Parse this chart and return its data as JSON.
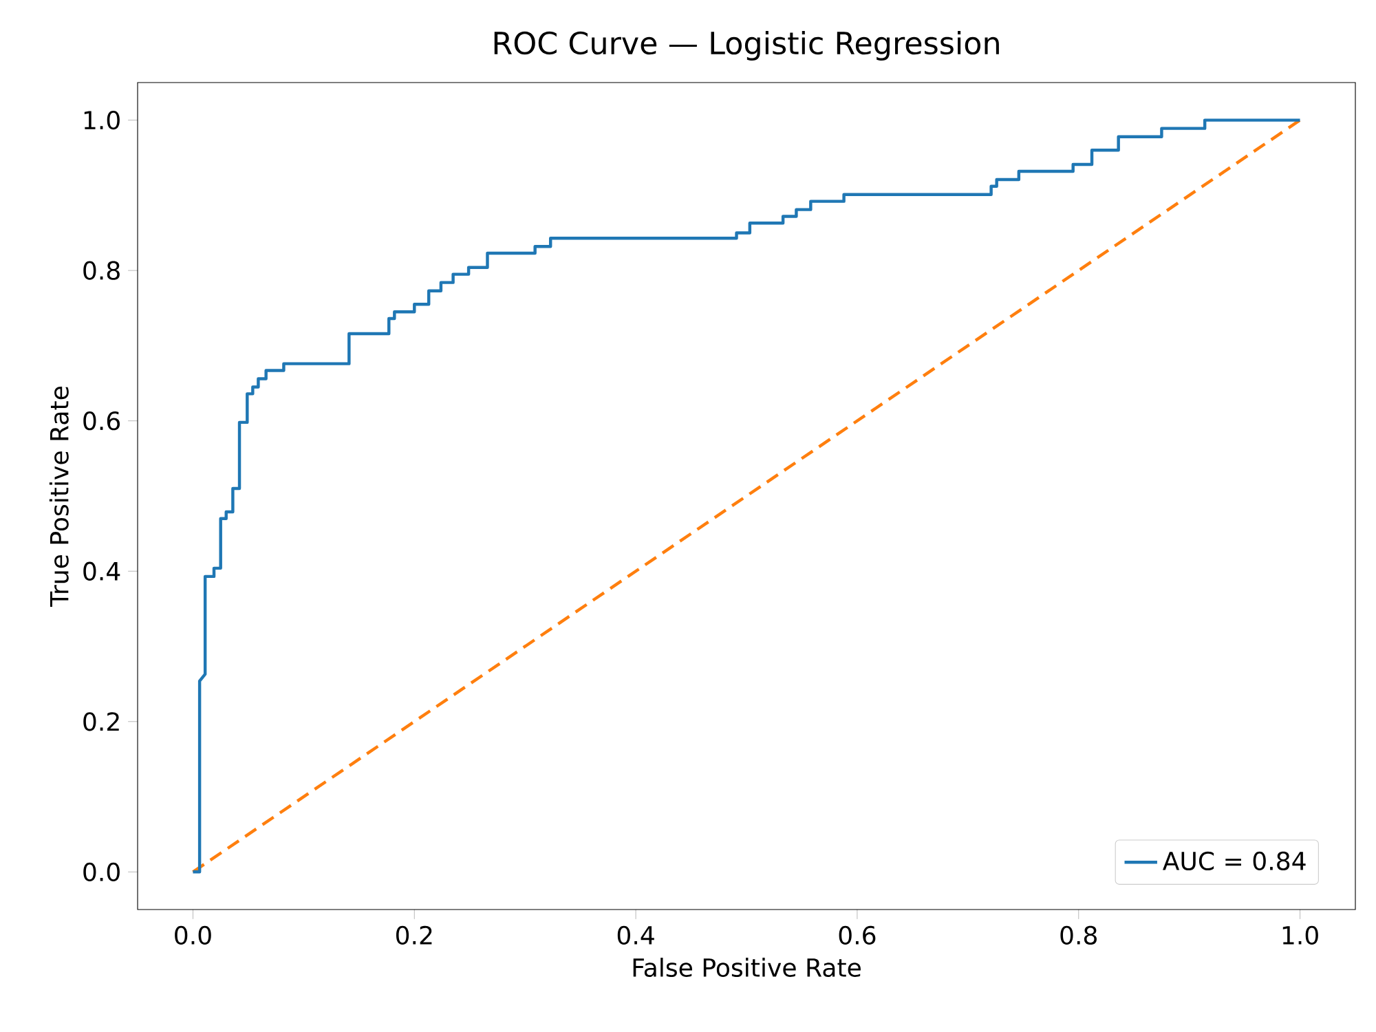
{
  "chart_data": {
    "type": "line",
    "title": "ROC Curve — Logistic Regression",
    "xlabel": "False Positive Rate",
    "ylabel": "True Positive Rate",
    "xlim": [
      -0.05,
      1.05
    ],
    "ylim": [
      -0.05,
      1.05
    ],
    "xticks": [
      {
        "value": 0,
        "label": "0.0"
      },
      {
        "value": 0.2,
        "label": "0.2"
      },
      {
        "value": 0.4,
        "label": "0.4"
      },
      {
        "value": 0.6,
        "label": "0.6"
      },
      {
        "value": 0.8,
        "label": "0.8"
      },
      {
        "value": 1,
        "label": "1.0"
      }
    ],
    "yticks": [
      {
        "value": 0,
        "label": "0.0"
      },
      {
        "value": 0.2,
        "label": "0.2"
      },
      {
        "value": 0.4,
        "label": "0.4"
      },
      {
        "value": 0.6,
        "label": "0.6"
      },
      {
        "value": 0.8,
        "label": "0.8"
      },
      {
        "value": 1,
        "label": "1.0"
      }
    ],
    "grid": false,
    "legend": "bottom right",
    "series": [
      {
        "name": "AUC = 0.84",
        "color": "#1f77b4",
        "line_style": "solid",
        "x": [
          0,
          0.006,
          0.006,
          0.011,
          0.011,
          0.019,
          0.019,
          0.025,
          0.025,
          0.03,
          0.03,
          0.036,
          0.036,
          0.042,
          0.042,
          0.049,
          0.049,
          0.054,
          0.054,
          0.059,
          0.059,
          0.066,
          0.066,
          0.082,
          0.082,
          0.141,
          0.141,
          0.177,
          0.177,
          0.182,
          0.182,
          0.2,
          0.2,
          0.213,
          0.213,
          0.224,
          0.224,
          0.235,
          0.235,
          0.249,
          0.249,
          0.266,
          0.266,
          0.309,
          0.309,
          0.323,
          0.323,
          0.491,
          0.491,
          0.503,
          0.503,
          0.533,
          0.533,
          0.545,
          0.545,
          0.558,
          0.558,
          0.588,
          0.588,
          0.721,
          0.721,
          0.726,
          0.726,
          0.746,
          0.746,
          0.795,
          0.795,
          0.812,
          0.812,
          0.836,
          0.836,
          0.875,
          0.875,
          0.914,
          0.914,
          1.0
        ],
        "values": [
          0,
          0,
          0.254,
          0.263,
          0.393,
          0.393,
          0.404,
          0.404,
          0.47,
          0.47,
          0.479,
          0.479,
          0.51,
          0.51,
          0.598,
          0.598,
          0.636,
          0.636,
          0.645,
          0.645,
          0.656,
          0.656,
          0.667,
          0.667,
          0.676,
          0.676,
          0.716,
          0.716,
          0.736,
          0.736,
          0.745,
          0.745,
          0.755,
          0.755,
          0.773,
          0.773,
          0.784,
          0.784,
          0.795,
          0.795,
          0.804,
          0.804,
          0.823,
          0.823,
          0.832,
          0.832,
          0.843,
          0.843,
          0.85,
          0.85,
          0.863,
          0.863,
          0.872,
          0.872,
          0.881,
          0.881,
          0.892,
          0.892,
          0.901,
          0.901,
          0.912,
          0.912,
          0.921,
          0.921,
          0.932,
          0.932,
          0.941,
          0.941,
          0.96,
          0.96,
          0.978,
          0.978,
          0.989,
          0.989,
          1.0,
          1.0
        ]
      },
      {
        "color": "#ff7f0e",
        "line_style": "dashed",
        "x": [
          0,
          1
        ],
        "values": [
          0,
          1
        ]
      }
    ]
  }
}
